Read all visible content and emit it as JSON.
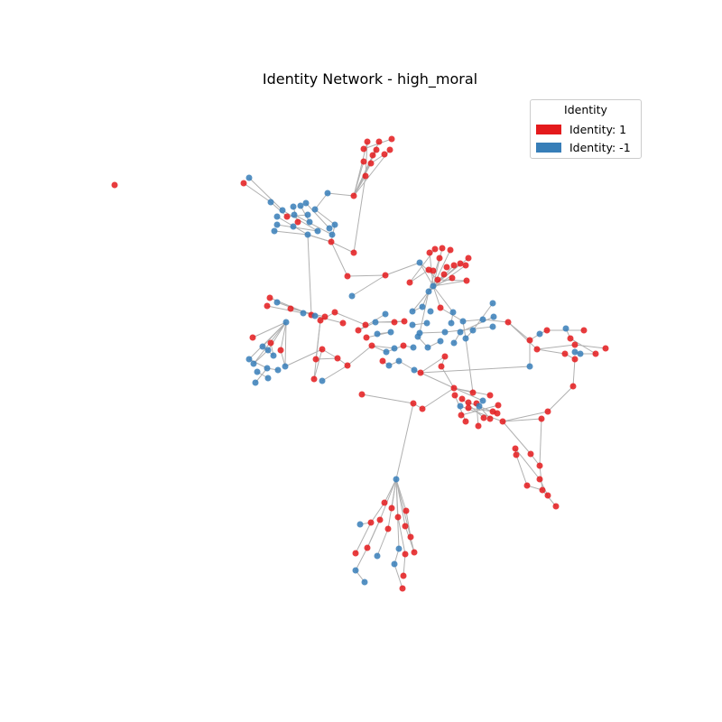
{
  "title": "Identity Network - high_moral",
  "legend": {
    "title": "Identity",
    "items": [
      {
        "label": "Identity: 1",
        "color": "#e41a1c"
      },
      {
        "label": "Identity: -1",
        "color": "#377eb8"
      }
    ]
  },
  "colors": {
    "identity_1": "#e41a1c",
    "identity_neg1": "#377eb8",
    "edge": "#b0b0b0"
  }
}
